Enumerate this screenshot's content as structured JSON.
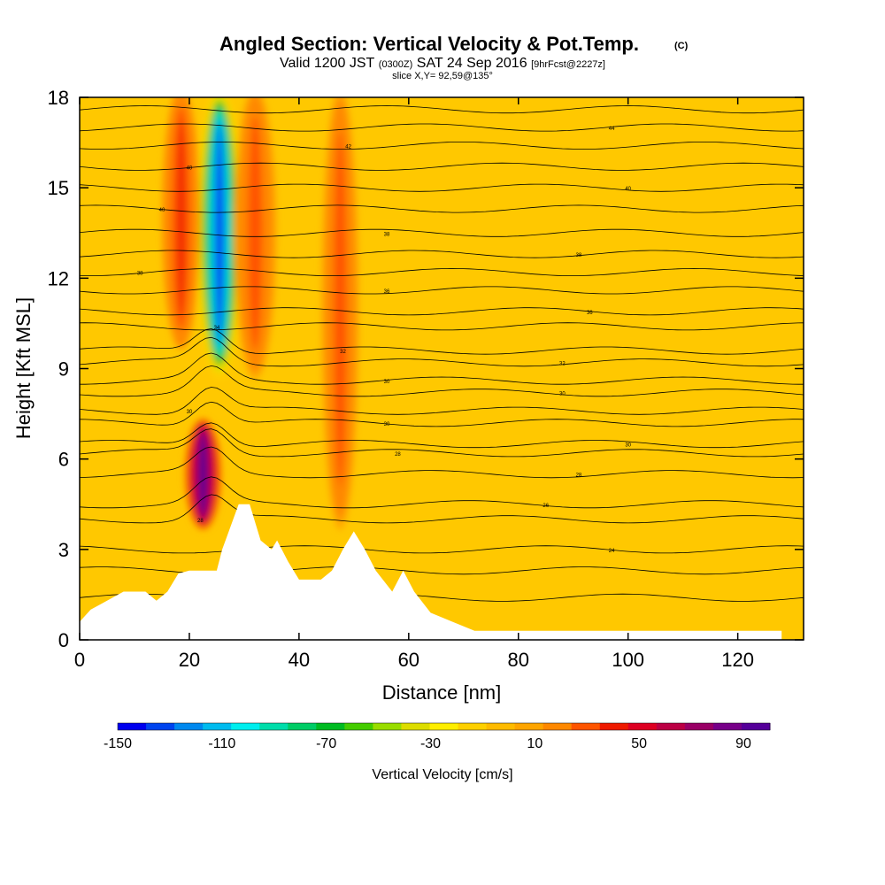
{
  "chart_data": {
    "type": "heatmap",
    "title": "Angled Section: Vertical Velocity & Pot.Temp.",
    "title_units": "(C)",
    "subtitle_parts": {
      "a": "Valid 1200 JST",
      "b": "(0300Z)",
      "c": "SAT 24 Sep 2016",
      "d": "[9hrFcst@2227z]"
    },
    "slice_label": "slice X,Y= 92,59@135°",
    "xlabel": "Distance [nm]",
    "ylabel": "Height [Kft MSL]",
    "xlim": [
      0,
      132
    ],
    "ylim": [
      0,
      18
    ],
    "x_ticks": [
      "0",
      "20",
      "40",
      "60",
      "80",
      "100",
      "120"
    ],
    "y_ticks": [
      "0",
      "3",
      "6",
      "9",
      "12",
      "15",
      "18"
    ],
    "colorbar": {
      "label": "Vertical Velocity [cm/s]",
      "tick_labels": [
        "-150",
        "-110",
        "-70",
        "-30",
        "10",
        "50",
        "90"
      ],
      "colors": [
        "#0000ee",
        "#0044ee",
        "#0088ee",
        "#00bbee",
        "#00eeee",
        "#00ddaa",
        "#00cc66",
        "#00bb22",
        "#44cc00",
        "#99dd00",
        "#dddd00",
        "#ffee00",
        "#ffd000",
        "#ffbb00",
        "#ffa500",
        "#ff8800",
        "#ff5500",
        "#ee1a00",
        "#dd0022",
        "#bb0044",
        "#990066",
        "#770088",
        "#550099"
      ]
    },
    "background_fill": "#ffc800",
    "plumes": [
      {
        "kind": "downdraft",
        "x": [
          24,
          27
        ],
        "z": [
          9,
          18
        ],
        "min_value": -140
      },
      {
        "kind": "updraft",
        "x": [
          22,
          23
        ],
        "z": [
          4,
          7
        ],
        "max_value": 95
      },
      {
        "kind": "updraft",
        "x": [
          18,
          19
        ],
        "z": [
          10,
          18
        ],
        "max_value": 40
      },
      {
        "kind": "updraft",
        "x": [
          47,
          48
        ],
        "z": [
          4,
          18
        ],
        "max_value": 30
      },
      {
        "kind": "updraft",
        "x": [
          31,
          33
        ],
        "z": [
          9,
          18
        ],
        "max_value": 30
      }
    ],
    "terrain_kft": [
      [
        0,
        0.6
      ],
      [
        2,
        1.0
      ],
      [
        4,
        1.2
      ],
      [
        8,
        1.6
      ],
      [
        12,
        1.6
      ],
      [
        14,
        1.3
      ],
      [
        16,
        1.6
      ],
      [
        18,
        2.2
      ],
      [
        20,
        2.3
      ],
      [
        25,
        2.3
      ],
      [
        26,
        3.0
      ],
      [
        28,
        4.0
      ],
      [
        29,
        4.5
      ],
      [
        31,
        4.5
      ],
      [
        33,
        3.3
      ],
      [
        35,
        3.0
      ],
      [
        36,
        3.3
      ],
      [
        38,
        2.6
      ],
      [
        40,
        2.0
      ],
      [
        44,
        2.0
      ],
      [
        46,
        2.3
      ],
      [
        48,
        3.0
      ],
      [
        50,
        3.6
      ],
      [
        52,
        3.0
      ],
      [
        54,
        2.3
      ],
      [
        57,
        1.6
      ],
      [
        59,
        2.3
      ],
      [
        61,
        1.6
      ],
      [
        64,
        0.9
      ],
      [
        68,
        0.6
      ],
      [
        72,
        0.3
      ],
      [
        128,
        0.3
      ]
    ],
    "isentropes": [
      {
        "z0": 1.4,
        "label": "",
        "lx": 0
      },
      {
        "z0": 2.3,
        "label": "",
        "lx": 0
      },
      {
        "z0": 3.0,
        "label": "24",
        "lx": 97
      },
      {
        "z0": 4.0,
        "label": "28",
        "lx": 22
      },
      {
        "z0": 4.5,
        "label": "26",
        "lx": 85
      },
      {
        "z0": 5.5,
        "label": "28",
        "lx": 91
      },
      {
        "z0": 6.2,
        "label": "28",
        "lx": 58
      },
      {
        "z0": 6.5,
        "label": "30",
        "lx": 100
      },
      {
        "z0": 7.2,
        "label": "30",
        "lx": 56
      },
      {
        "z0": 7.6,
        "label": "30",
        "lx": 20
      },
      {
        "z0": 8.2,
        "label": "30",
        "lx": 88
      },
      {
        "z0": 8.6,
        "label": "30",
        "lx": 56
      },
      {
        "z0": 9.2,
        "label": "32",
        "lx": 88
      },
      {
        "z0": 9.6,
        "label": "32",
        "lx": 48
      },
      {
        "z0": 10.4,
        "label": "34",
        "lx": 25
      },
      {
        "z0": 10.9,
        "label": "36",
        "lx": 93
      },
      {
        "z0": 11.6,
        "label": "36",
        "lx": 56
      },
      {
        "z0": 12.2,
        "label": "38",
        "lx": 11
      },
      {
        "z0": 12.8,
        "label": "38",
        "lx": 91
      },
      {
        "z0": 13.5,
        "label": "38",
        "lx": 56
      },
      {
        "z0": 14.3,
        "label": "40",
        "lx": 15
      },
      {
        "z0": 15.0,
        "label": "40",
        "lx": 100
      },
      {
        "z0": 15.7,
        "label": "40",
        "lx": 20
      },
      {
        "z0": 16.4,
        "label": "42",
        "lx": 49
      },
      {
        "z0": 17.0,
        "label": "44",
        "lx": 97
      },
      {
        "z0": 17.6,
        "label": "",
        "lx": 0
      }
    ]
  }
}
